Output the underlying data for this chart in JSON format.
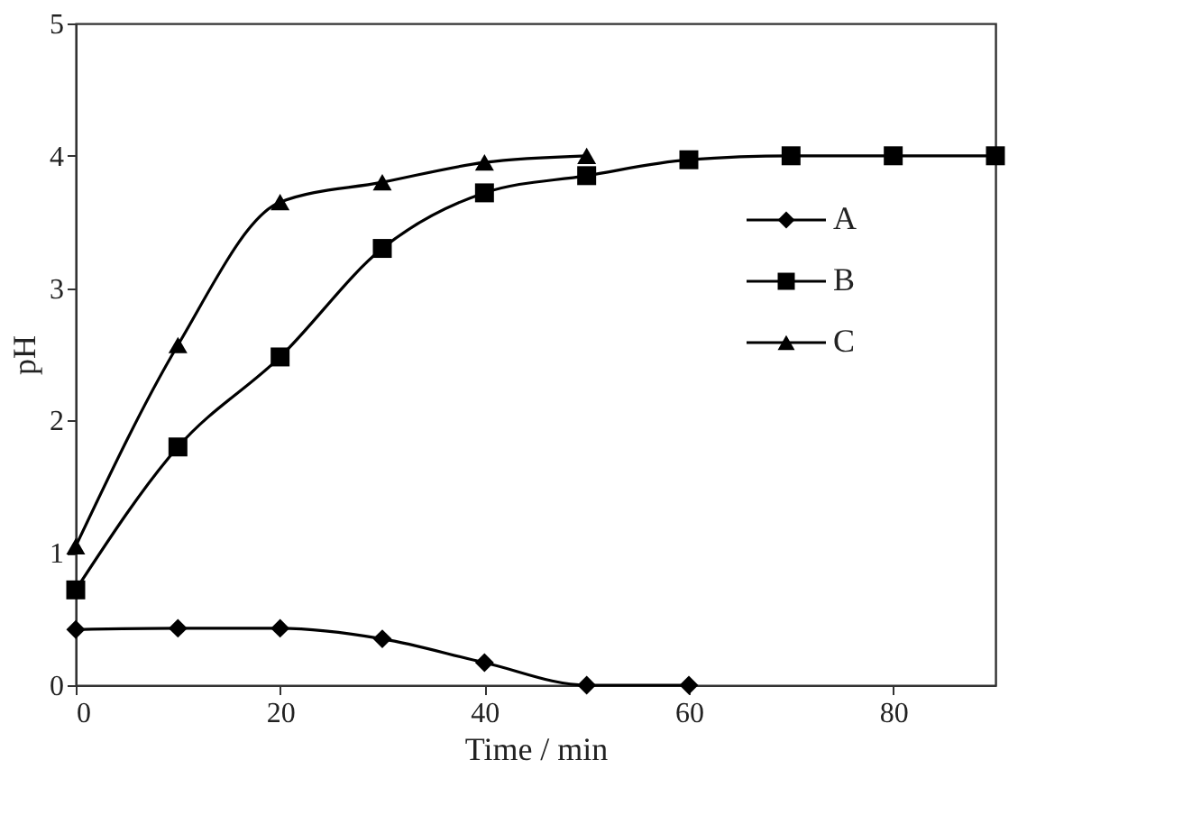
{
  "chart_data": {
    "type": "line",
    "xlabel": "Time / min",
    "ylabel": "pH",
    "xlim": [
      0,
      90
    ],
    "xticks": [
      0,
      20,
      40,
      60,
      80
    ],
    "ylim": [
      0,
      5
    ],
    "yticks": [
      0,
      1,
      2,
      3,
      4,
      5
    ],
    "grid": false,
    "legend": "top right",
    "line_style": "solid",
    "series": [
      {
        "name": "A",
        "color": "#000000",
        "marker": "diamond",
        "x": [
          0,
          10,
          20,
          30,
          40,
          50,
          60
        ],
        "values": [
          0.42,
          0.43,
          0.43,
          0.35,
          0.17,
          0,
          0
        ]
      },
      {
        "name": "B",
        "color": "#000000",
        "marker": "square",
        "x": [
          0,
          10,
          20,
          30,
          40,
          50,
          60,
          70,
          80,
          90
        ],
        "values": [
          0.72,
          1.8,
          2.48,
          3.3,
          3.72,
          3.85,
          3.97,
          4.0,
          4.0,
          4.0
        ]
      },
      {
        "name": "C",
        "color": "#000000",
        "marker": "triangle",
        "x": [
          0,
          10,
          20,
          30,
          40,
          50
        ],
        "values": [
          1.05,
          2.57,
          3.65,
          3.8,
          3.95,
          4.0
        ]
      }
    ]
  }
}
